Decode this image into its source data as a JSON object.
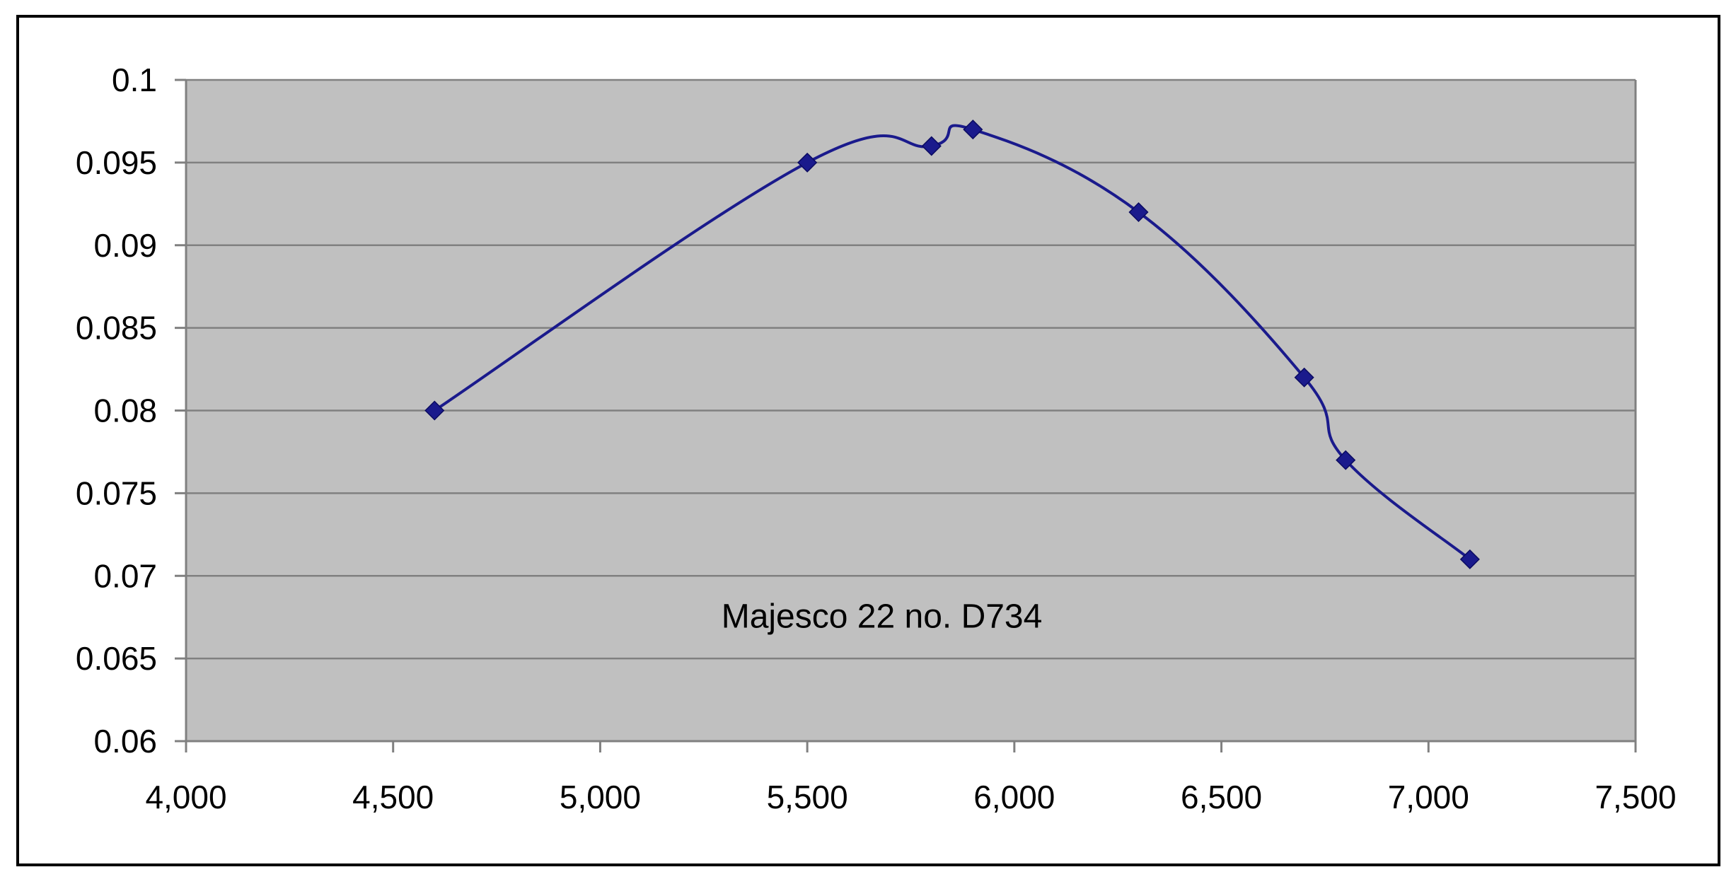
{
  "chart_data": {
    "type": "line",
    "title": "",
    "xlabel": "",
    "ylabel": "",
    "xlim": [
      4000,
      7500
    ],
    "ylim": [
      0.06,
      0.1
    ],
    "x_ticks": [
      4000,
      4500,
      5000,
      5500,
      6000,
      6500,
      7000,
      7500
    ],
    "x_tick_labels": [
      "4,000",
      "4,500",
      "5,000",
      "5,500",
      "6,000",
      "6,500",
      "7,000",
      "7,500"
    ],
    "y_ticks": [
      0.06,
      0.065,
      0.07,
      0.075,
      0.08,
      0.085,
      0.09,
      0.095,
      0.1
    ],
    "y_tick_labels": [
      "0.06",
      "0.065",
      "0.07",
      "0.075",
      "0.08",
      "0.085",
      "0.09",
      "0.095",
      "0.1"
    ],
    "grid": "horizontal",
    "legend": "none",
    "annotation": "Majesco 22 no. D734",
    "series": [
      {
        "x": [
          4600,
          5500,
          5800,
          5900,
          6300,
          6700,
          6800,
          7100
        ],
        "y": [
          0.08,
          0.095,
          0.096,
          0.097,
          0.092,
          0.082,
          0.077,
          0.071
        ],
        "color": "#1a1a8c",
        "marker": "diamond",
        "smooth": true
      }
    ],
    "colors": {
      "plot_background": "#c0c0c0",
      "gridline": "#808080",
      "frame": "#000000",
      "axis": "#808080"
    }
  }
}
